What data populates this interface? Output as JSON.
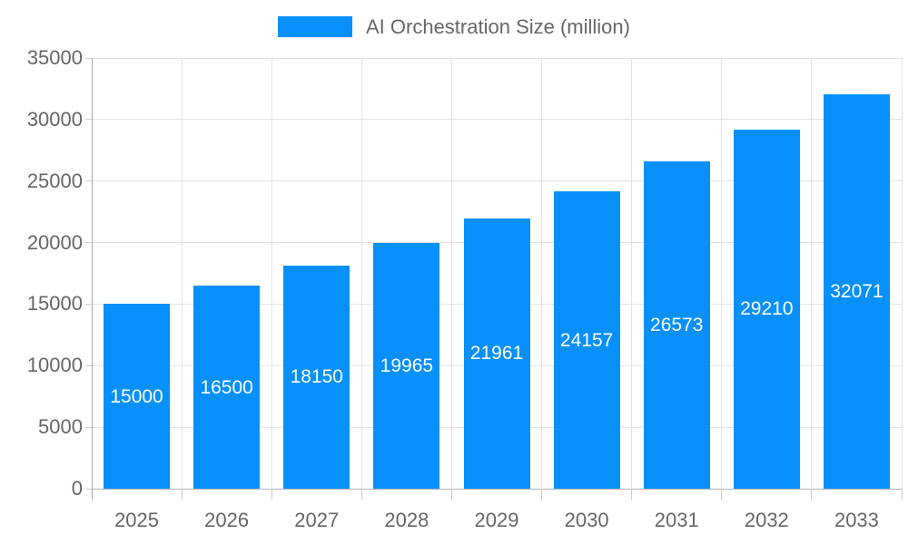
{
  "chart_data": {
    "type": "bar",
    "title": "AI Orchestration Size (million)",
    "legend": {
      "position": "top",
      "entries": [
        {
          "label": "AI Orchestration Size (million)",
          "color": "#0790f9"
        }
      ]
    },
    "categories": [
      "2025",
      "2026",
      "2027",
      "2028",
      "2029",
      "2030",
      "2031",
      "2032",
      "2033"
    ],
    "series": [
      {
        "name": "AI Orchestration Size (million)",
        "values": [
          15000,
          16500,
          18150,
          19965,
          21961,
          24157,
          26573,
          29210,
          32071
        ]
      }
    ],
    "value_labels": [
      "15000",
      "16500",
      "18150",
      "19965",
      "21961",
      "24157",
      "26573",
      "29210",
      "32071"
    ],
    "xlabel": "",
    "ylabel": "",
    "ylim": [
      0,
      35000
    ],
    "yticks": [
      0,
      5000,
      10000,
      15000,
      20000,
      25000,
      30000,
      35000
    ],
    "grid": true
  },
  "colors": {
    "bar": "#0790f9",
    "grid": "#e3e3e3",
    "axis_y": "#a6a6a6",
    "axis_x": "#b3b3b3",
    "tick_text": "#666666",
    "legend_text": "#666666",
    "value_text": "#ffffff",
    "background": "#ffffff"
  }
}
